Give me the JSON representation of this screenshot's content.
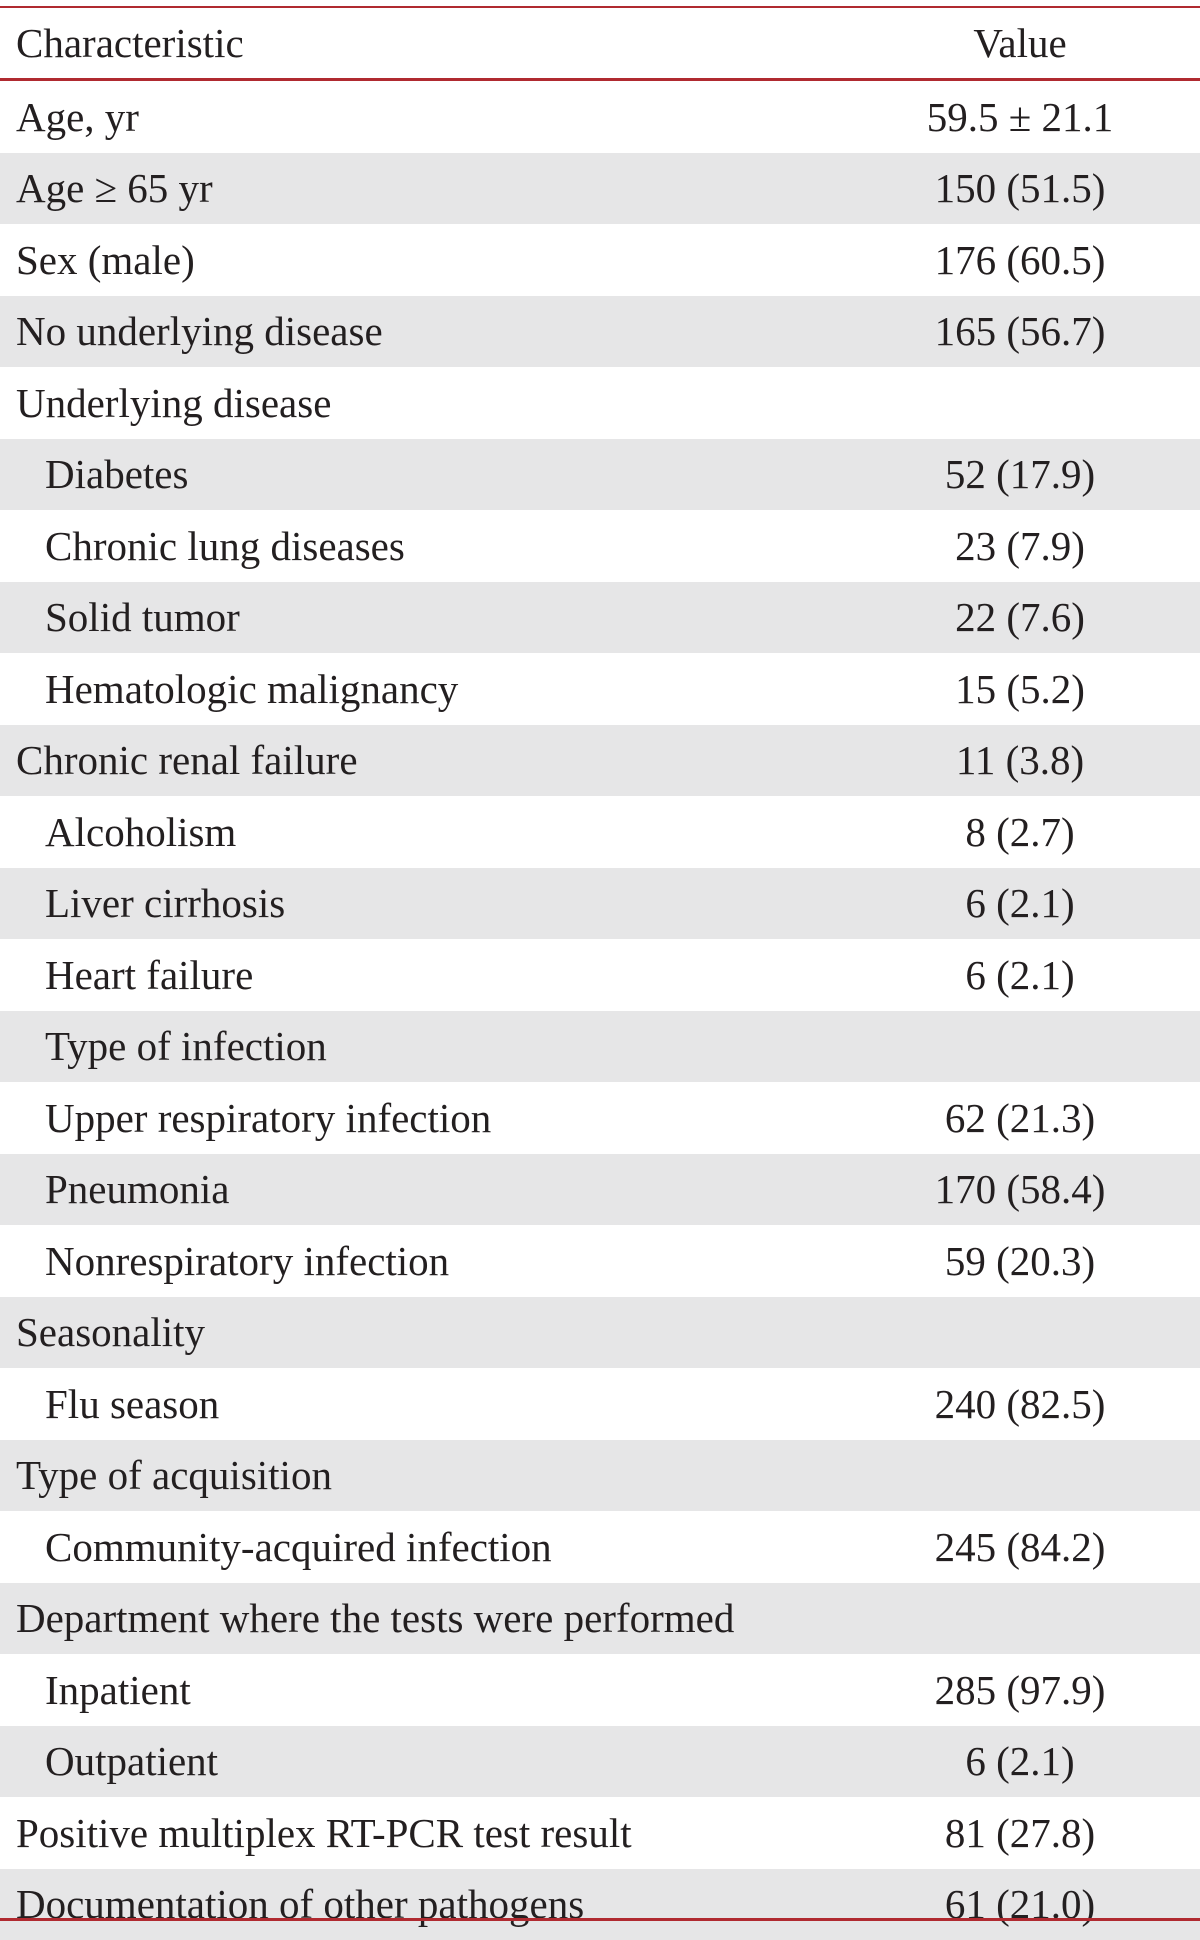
{
  "table": {
    "header": {
      "characteristic": "Characteristic",
      "value": "Value"
    },
    "rows": [
      {
        "label": "Age, yr",
        "value": "59.5 ± 21.1",
        "indent": false
      },
      {
        "label": "Age ≥ 65 yr",
        "value": "150 (51.5)",
        "indent": false
      },
      {
        "label": "Sex (male)",
        "value": "176 (60.5)",
        "indent": false
      },
      {
        "label": "No underlying disease",
        "value": "165 (56.7)",
        "indent": false
      },
      {
        "label": "Underlying disease",
        "value": "",
        "indent": false
      },
      {
        "label": "Diabetes",
        "value": "52 (17.9)",
        "indent": true
      },
      {
        "label": "Chronic lung diseases",
        "value": "23 (7.9)",
        "indent": true
      },
      {
        "label": "Solid tumor",
        "value": "22 (7.6)",
        "indent": true
      },
      {
        "label": "Hematologic malignancy",
        "value": "15 (5.2)",
        "indent": true
      },
      {
        "label": "Chronic renal failure",
        "value": "11 (3.8)",
        "indent": false
      },
      {
        "label": "Alcoholism",
        "value": "8 (2.7)",
        "indent": true
      },
      {
        "label": "Liver cirrhosis",
        "value": "6 (2.1)",
        "indent": true
      },
      {
        "label": "Heart failure",
        "value": "6 (2.1)",
        "indent": true
      },
      {
        "label": "Type of infection",
        "value": "",
        "indent": true
      },
      {
        "label": "Upper respiratory infection",
        "value": "62 (21.3)",
        "indent": true
      },
      {
        "label": "Pneumonia",
        "value": "170 (58.4)",
        "indent": true
      },
      {
        "label": "Nonrespiratory infection",
        "value": "59 (20.3)",
        "indent": true
      },
      {
        "label": "Seasonality",
        "value": "",
        "indent": false
      },
      {
        "label": "Flu season",
        "value": "240 (82.5)",
        "indent": true
      },
      {
        "label": "Type of acquisition",
        "value": "",
        "indent": false
      },
      {
        "label": "Community-acquired infection",
        "value": "245 (84.2)",
        "indent": true
      },
      {
        "label": "Department where the tests were performed",
        "value": "",
        "indent": false
      },
      {
        "label": "Inpatient",
        "value": "285 (97.9)",
        "indent": true
      },
      {
        "label": "Outpatient",
        "value": "6 (2.1)",
        "indent": true
      },
      {
        "label": "Positive multiplex RT-PCR test result",
        "value": "81 (27.8)",
        "indent": false
      },
      {
        "label": "Documentation of other pathogens",
        "value": "61 (21.0)",
        "indent": false
      }
    ]
  },
  "colors": {
    "rule": "#b02a30",
    "shade": "#e6e6e7",
    "text": "#231f20"
  }
}
